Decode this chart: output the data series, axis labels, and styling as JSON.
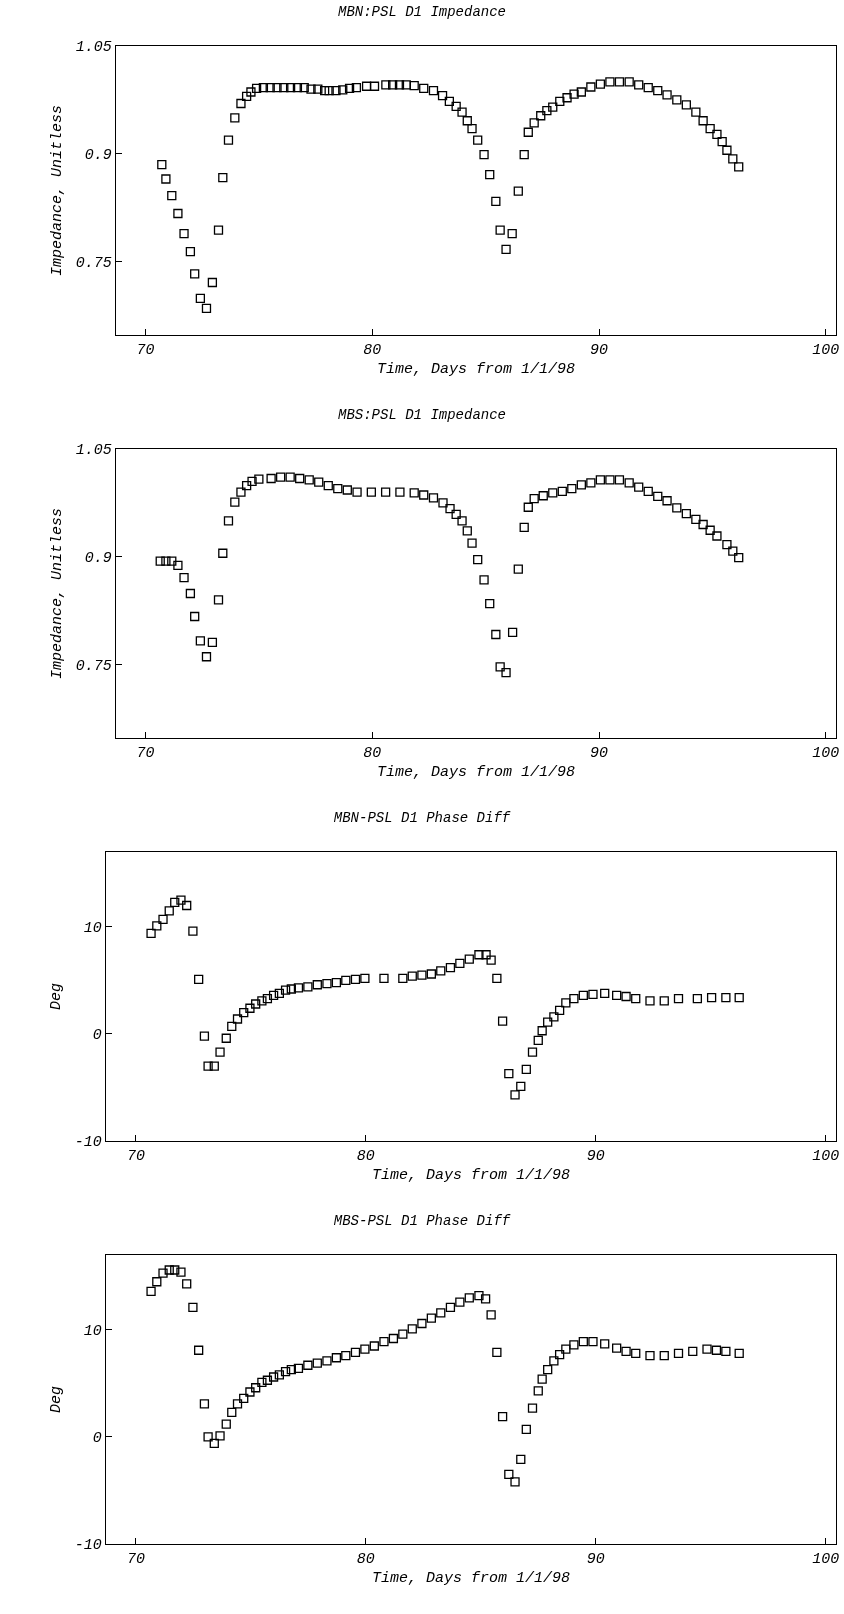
{
  "chart_data": [
    {
      "type": "scatter",
      "title": "MBN:PSL D1 Impedance",
      "xlabel": "Time, Days from 1/1/98",
      "ylabel": "Impedance, Unitless",
      "color": "#000000",
      "marker": "square",
      "xlim": [
        68.7,
        100.45
      ],
      "xticks": [
        70,
        80,
        90,
        100
      ],
      "ylim": [
        0.648,
        1.05
      ],
      "yticks": [
        0.75,
        0.9,
        1.05
      ],
      "x": [
        70.72,
        70.9,
        71.16,
        71.43,
        71.7,
        71.98,
        72.17,
        72.42,
        72.69,
        72.95,
        73.22,
        73.41,
        73.66,
        73.94,
        74.21,
        74.46,
        74.65,
        74.9,
        75.2,
        75.5,
        75.8,
        76.1,
        76.4,
        76.7,
        77.0,
        77.3,
        77.6,
        77.9,
        78.1,
        78.4,
        78.7,
        79.0,
        79.3,
        79.75,
        80.1,
        80.6,
        80.9,
        81.2,
        81.5,
        81.85,
        82.27,
        82.7,
        83.1,
        83.4,
        83.7,
        83.96,
        84.19,
        84.4,
        84.65,
        84.93,
        85.18,
        85.45,
        85.64,
        85.9,
        86.17,
        86.44,
        86.7,
        86.88,
        87.14,
        87.43,
        87.7,
        87.96,
        88.27,
        88.59,
        88.9,
        89.22,
        89.64,
        90.06,
        90.48,
        90.9,
        91.33,
        91.75,
        92.17,
        92.59,
        93.0,
        93.43,
        93.85,
        94.27,
        94.59,
        94.9,
        95.2,
        95.43,
        95.64,
        95.9,
        96.16
      ],
      "values": [
        0.885,
        0.865,
        0.842,
        0.817,
        0.789,
        0.764,
        0.733,
        0.699,
        0.685,
        0.721,
        0.794,
        0.867,
        0.919,
        0.95,
        0.97,
        0.98,
        0.986,
        0.991,
        0.992,
        0.992,
        0.992,
        0.992,
        0.992,
        0.992,
        0.992,
        0.99,
        0.99,
        0.988,
        0.988,
        0.988,
        0.989,
        0.991,
        0.992,
        0.994,
        0.994,
        0.996,
        0.996,
        0.996,
        0.996,
        0.995,
        0.991,
        0.988,
        0.981,
        0.973,
        0.966,
        0.958,
        0.946,
        0.935,
        0.919,
        0.899,
        0.871,
        0.834,
        0.794,
        0.767,
        0.789,
        0.848,
        0.899,
        0.93,
        0.943,
        0.953,
        0.96,
        0.965,
        0.973,
        0.978,
        0.983,
        0.986,
        0.993,
        0.997,
        1.0,
        1.0,
        1.0,
        0.996,
        0.992,
        0.988,
        0.982,
        0.975,
        0.968,
        0.958,
        0.946,
        0.935,
        0.927,
        0.917,
        0.905,
        0.893,
        0.882
      ]
    },
    {
      "type": "scatter",
      "title": "MBS:PSL D1 Impedance",
      "xlabel": "Time, Days from 1/1/98",
      "ylabel": "Impedance, Unitless",
      "color": "#000000",
      "marker": "square",
      "xlim": [
        68.7,
        100.45
      ],
      "xticks": [
        70,
        80,
        90,
        100
      ],
      "ylim": [
        0.648,
        1.05
      ],
      "yticks": [
        0.75,
        0.9,
        1.05
      ],
      "x": [
        70.65,
        70.9,
        71.16,
        71.43,
        71.7,
        71.98,
        72.17,
        72.42,
        72.69,
        72.95,
        73.22,
        73.41,
        73.66,
        73.94,
        74.21,
        74.46,
        74.7,
        75.0,
        75.54,
        75.96,
        76.38,
        76.8,
        77.22,
        77.64,
        78.06,
        78.48,
        78.9,
        79.33,
        79.96,
        80.59,
        81.22,
        81.85,
        82.27,
        82.7,
        83.12,
        83.43,
        83.7,
        83.96,
        84.19,
        84.4,
        84.65,
        84.93,
        85.18,
        85.45,
        85.64,
        85.9,
        86.19,
        86.44,
        86.7,
        86.88,
        87.14,
        87.54,
        87.96,
        88.38,
        88.8,
        89.22,
        89.64,
        90.06,
        90.48,
        90.9,
        91.33,
        91.75,
        92.17,
        92.59,
        93.0,
        93.43,
        93.85,
        94.27,
        94.59,
        94.9,
        95.2,
        95.64,
        95.9,
        96.16
      ],
      "values": [
        0.894,
        0.894,
        0.894,
        0.888,
        0.871,
        0.849,
        0.817,
        0.783,
        0.761,
        0.781,
        0.84,
        0.905,
        0.95,
        0.976,
        0.99,
        0.999,
        1.005,
        1.008,
        1.009,
        1.011,
        1.011,
        1.009,
        1.007,
        1.004,
        0.999,
        0.995,
        0.993,
        0.99,
        0.99,
        0.99,
        0.99,
        0.989,
        0.986,
        0.982,
        0.975,
        0.967,
        0.959,
        0.95,
        0.936,
        0.919,
        0.896,
        0.868,
        0.835,
        0.792,
        0.747,
        0.739,
        0.795,
        0.883,
        0.941,
        0.969,
        0.981,
        0.985,
        0.989,
        0.991,
        0.995,
        1.0,
        1.003,
        1.007,
        1.007,
        1.007,
        1.003,
        0.997,
        0.991,
        0.984,
        0.978,
        0.968,
        0.96,
        0.952,
        0.945,
        0.937,
        0.929,
        0.917,
        0.908,
        0.899
      ]
    },
    {
      "type": "scatter",
      "title": "MBN-PSL D1 Phase Diff",
      "xlabel": "Time, Days from 1/1/98",
      "ylabel": "Deg",
      "color": "#000000",
      "marker": "square",
      "xlim": [
        68.7,
        100.45
      ],
      "xticks": [
        70,
        80,
        90,
        100
      ],
      "ylim": [
        -10,
        17
      ],
      "yticks": [
        -10,
        0,
        10
      ],
      "x": [
        70.66,
        70.91,
        71.18,
        71.45,
        71.69,
        71.96,
        72.21,
        72.48,
        72.73,
        72.98,
        73.14,
        73.41,
        73.66,
        73.93,
        74.17,
        74.42,
        74.69,
        74.96,
        75.21,
        75.48,
        75.72,
        75.99,
        76.24,
        76.51,
        76.76,
        77.07,
        77.48,
        77.89,
        78.31,
        78.72,
        79.13,
        79.55,
        79.96,
        80.79,
        81.61,
        82.02,
        82.44,
        82.85,
        83.26,
        83.68,
        84.09,
        84.5,
        84.92,
        85.23,
        85.45,
        85.7,
        85.95,
        86.22,
        86.49,
        86.74,
        86.98,
        87.25,
        87.5,
        87.67,
        87.91,
        88.18,
        88.43,
        88.7,
        89.05,
        89.46,
        89.88,
        90.39,
        90.91,
        91.32,
        91.74,
        92.36,
        92.98,
        93.6,
        94.42,
        95.04,
        95.66,
        96.24
      ],
      "values": [
        9.4,
        10.1,
        10.7,
        11.5,
        12.3,
        12.5,
        12.0,
        9.6,
        5.1,
        -0.2,
        -3.0,
        -3.0,
        -1.7,
        -0.4,
        0.7,
        1.4,
        2.0,
        2.4,
        2.8,
        3.1,
        3.3,
        3.6,
        3.8,
        4.1,
        4.2,
        4.3,
        4.4,
        4.6,
        4.7,
        4.8,
        5.0,
        5.1,
        5.2,
        5.2,
        5.2,
        5.4,
        5.5,
        5.6,
        5.9,
        6.2,
        6.6,
        7.0,
        7.4,
        7.4,
        6.9,
        5.2,
        1.2,
        -3.7,
        -5.7,
        -4.9,
        -3.3,
        -1.7,
        -0.6,
        0.3,
        1.1,
        1.6,
        2.2,
        2.9,
        3.3,
        3.6,
        3.7,
        3.8,
        3.6,
        3.5,
        3.3,
        3.1,
        3.1,
        3.3,
        3.3,
        3.4,
        3.4,
        3.4
      ]
    },
    {
      "type": "scatter",
      "title": "MBS-PSL D1 Phase Diff",
      "xlabel": "Time, Days from 1/1/98",
      "ylabel": "Deg",
      "color": "#000000",
      "marker": "square",
      "xlim": [
        68.7,
        100.45
      ],
      "xticks": [
        70,
        80,
        90,
        100
      ],
      "ylim": [
        -10,
        17
      ],
      "yticks": [
        -10,
        0,
        10
      ],
      "x": [
        70.66,
        70.91,
        71.18,
        71.45,
        71.69,
        71.96,
        72.21,
        72.48,
        72.73,
        72.98,
        73.14,
        73.41,
        73.66,
        73.93,
        74.17,
        74.42,
        74.69,
        74.96,
        75.21,
        75.48,
        75.72,
        75.99,
        76.24,
        76.51,
        76.76,
        77.07,
        77.48,
        77.89,
        78.31,
        78.72,
        79.13,
        79.55,
        79.96,
        80.37,
        80.79,
        81.2,
        81.61,
        82.02,
        82.44,
        82.85,
        83.26,
        83.68,
        84.09,
        84.5,
        84.92,
        85.21,
        85.45,
        85.7,
        85.95,
        86.22,
        86.49,
        86.74,
        86.98,
        87.25,
        87.5,
        87.67,
        87.91,
        88.18,
        88.43,
        88.7,
        89.05,
        89.46,
        89.88,
        90.39,
        90.91,
        91.32,
        91.74,
        92.36,
        92.98,
        93.6,
        94.22,
        94.84,
        95.25,
        95.66,
        96.24
      ],
      "values": [
        13.6,
        14.5,
        15.3,
        15.6,
        15.6,
        15.4,
        14.3,
        12.1,
        8.1,
        3.1,
        0.0,
        -0.6,
        0.1,
        1.2,
        2.3,
        3.1,
        3.6,
        4.2,
        4.6,
        5.1,
        5.3,
        5.6,
        5.8,
        6.1,
        6.3,
        6.4,
        6.7,
        6.9,
        7.1,
        7.4,
        7.6,
        7.9,
        8.2,
        8.5,
        8.9,
        9.2,
        9.6,
        10.1,
        10.6,
        11.1,
        11.6,
        12.1,
        12.6,
        13.0,
        13.2,
        12.9,
        11.4,
        7.9,
        1.9,
        -3.5,
        -4.2,
        -2.1,
        0.7,
        2.7,
        4.3,
        5.4,
        6.3,
        7.1,
        7.7,
        8.2,
        8.6,
        8.9,
        8.9,
        8.7,
        8.3,
        8.0,
        7.8,
        7.6,
        7.6,
        7.8,
        8.0,
        8.2,
        8.1,
        8.0,
        7.8
      ]
    }
  ]
}
